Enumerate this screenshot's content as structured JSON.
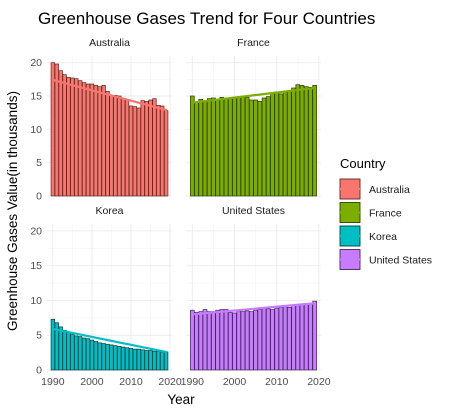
{
  "chart_data": {
    "type": "bar",
    "title": "Greenhouse Gases Trend for Four Countries",
    "xlabel": "Year",
    "ylabel": "Greenhouse Gases Value(in thousands)",
    "xlim": [
      1988.5,
      2020.5
    ],
    "ylim": [
      0,
      21
    ],
    "x_ticks": [
      1990,
      2000,
      2010,
      2020
    ],
    "y_ticks": [
      0,
      5,
      10,
      15,
      20
    ],
    "grid": true,
    "legend": {
      "title": "Country",
      "placement": "right",
      "entries": [
        "Australia",
        "France",
        "Korea",
        "United States"
      ]
    },
    "years": [
      1990,
      1991,
      1992,
      1993,
      1994,
      1995,
      1996,
      1997,
      1998,
      1999,
      2000,
      2001,
      2002,
      2003,
      2004,
      2005,
      2006,
      2007,
      2008,
      2009,
      2010,
      2011,
      2012,
      2013,
      2014,
      2015,
      2016,
      2017,
      2018,
      2019
    ],
    "panels": [
      {
        "name": "Australia",
        "fill": "#f8766d",
        "dark": "#5a2a27",
        "trend": [
          17.4,
          12.9
        ],
        "values": [
          20.0,
          19.8,
          18.8,
          18.2,
          17.8,
          17.7,
          17.6,
          17.3,
          17.0,
          16.8,
          16.8,
          16.6,
          16.4,
          16.6,
          15.7,
          15.1,
          15.1,
          15.0,
          14.6,
          14.4,
          13.5,
          13.4,
          13.2,
          14.3,
          14.2,
          14.4,
          14.6,
          13.6,
          13.5,
          12.8
        ]
      },
      {
        "name": "France",
        "fill": "#7cae00",
        "dark": "#2e3f05",
        "trend": [
          14.0,
          16.2
        ],
        "values": [
          15.0,
          14.1,
          14.5,
          14.3,
          14.6,
          14.7,
          14.5,
          14.8,
          14.6,
          14.6,
          14.7,
          14.8,
          14.9,
          14.8,
          14.4,
          14.4,
          14.2,
          14.7,
          14.9,
          15.4,
          15.6,
          15.3,
          15.6,
          15.8,
          16.2,
          16.7,
          16.6,
          16.4,
          16.3,
          16.6
        ]
      },
      {
        "name": "Korea",
        "fill": "#00bfc4",
        "dark": "#0d3b3d",
        "trend": [
          5.9,
          2.6
        ],
        "values": [
          7.3,
          6.8,
          6.2,
          5.7,
          5.4,
          5.1,
          4.9,
          4.8,
          4.6,
          4.5,
          4.3,
          4.1,
          3.9,
          3.8,
          3.7,
          3.6,
          3.5,
          3.4,
          3.3,
          3.2,
          3.1,
          3.0,
          3.0,
          2.9,
          2.8,
          2.8,
          2.7,
          2.7,
          2.6,
          2.6
        ]
      },
      {
        "name": "United States",
        "fill": "#c77cff",
        "dark": "#3f2a52",
        "trend": [
          8.0,
          9.6
        ],
        "values": [
          8.6,
          8.3,
          8.4,
          8.7,
          8.4,
          8.4,
          8.6,
          8.7,
          8.7,
          8.3,
          8.2,
          8.5,
          8.4,
          8.5,
          8.4,
          8.6,
          8.7,
          8.9,
          8.8,
          8.7,
          8.9,
          9.0,
          9.1,
          9.0,
          9.3,
          9.4,
          9.4,
          9.5,
          9.5,
          9.9
        ]
      }
    ]
  }
}
